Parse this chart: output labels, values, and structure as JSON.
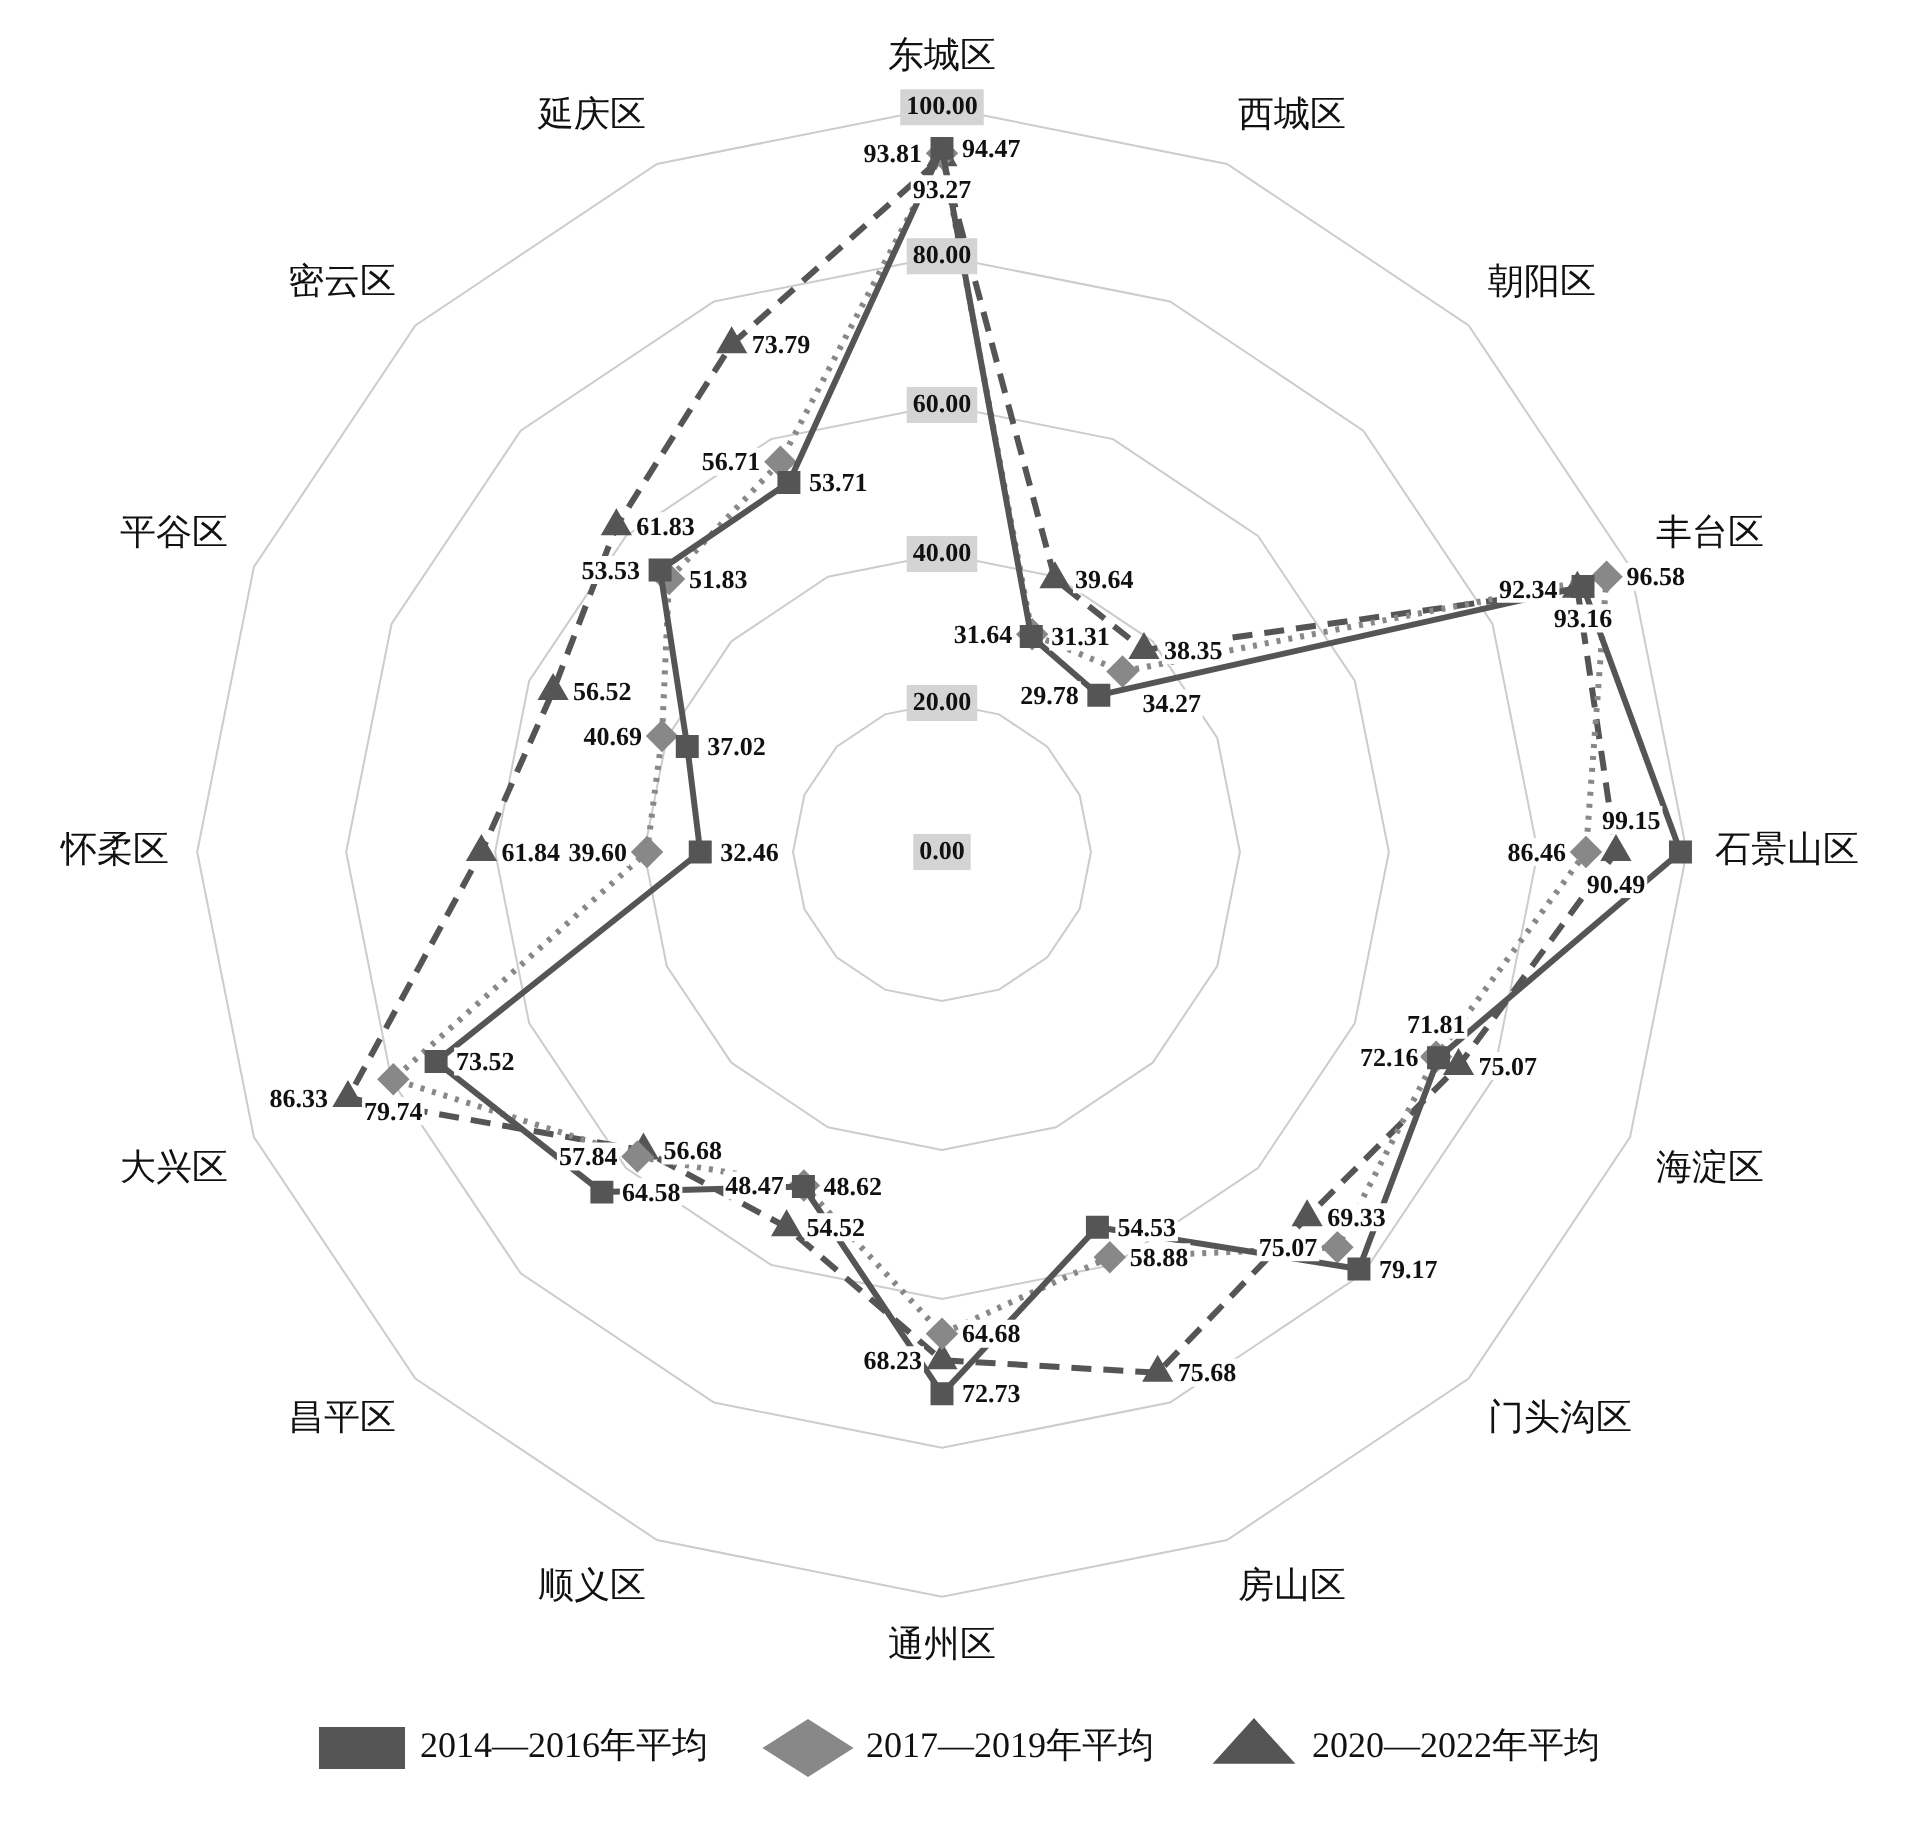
{
  "chart_data": {
    "type": "radar",
    "categories": [
      "东城区",
      "西城区",
      "朝阳区",
      "丰台区",
      "石景山区",
      "海淀区",
      "门头沟区",
      "房山区",
      "通州区",
      "顺义区",
      "昌平区",
      "大兴区",
      "怀柔区",
      "平谷区",
      "密云区",
      "延庆区"
    ],
    "ylim": [
      0,
      100
    ],
    "yticks": [
      {
        "value": 0,
        "label": "0.00"
      },
      {
        "value": 20,
        "label": "20.00"
      },
      {
        "value": 40,
        "label": "40.00"
      },
      {
        "value": 60,
        "label": "60.00"
      },
      {
        "value": 80,
        "label": "80.00"
      },
      {
        "value": 100,
        "label": "100.00"
      }
    ],
    "grid": true,
    "legend": "bottom",
    "data_labels": true,
    "series": [
      {
        "name": "2014—2016年平均",
        "color": "#555555",
        "marker": "square",
        "line_style": "solid",
        "values": [
          94.47,
          31.31,
          29.78,
          93.16,
          99.15,
          72.16,
          79.17,
          54.53,
          72.73,
          48.62,
          64.58,
          73.52,
          32.46,
          37.02,
          53.53,
          53.71
        ],
        "value_labels": [
          "94.47",
          "31.31",
          "29.78",
          "93.16",
          "99.15",
          "72.16",
          "79.17",
          "54.53",
          "72.73",
          "48.62",
          "64.58",
          "73.52",
          "32.46",
          "37.02",
          "53.53",
          "53.71"
        ]
      },
      {
        "name": "2017—2019年平均",
        "color": "#888888",
        "marker": "diamond",
        "line_style": "dotted",
        "values": [
          93.81,
          31.64,
          34.27,
          96.58,
          86.46,
          71.81,
          75.07,
          58.88,
          64.68,
          48.47,
          57.84,
          79.74,
          39.6,
          40.69,
          51.83,
          56.71
        ],
        "value_labels": [
          "93.81",
          "31.64",
          "34.27",
          "96.58",
          "86.46",
          "71.81",
          "75.07",
          "58.88",
          "64.68",
          "48.47",
          "57.84",
          "79.74",
          "39.60",
          "40.69",
          "51.83",
          "56.71"
        ]
      },
      {
        "name": "2020—2022年平均",
        "color": "#555555",
        "marker": "triangle",
        "line_style": "dashed",
        "values": [
          93.27,
          39.64,
          38.35,
          92.34,
          90.49,
          75.07,
          69.33,
          75.68,
          68.23,
          54.52,
          56.68,
          86.33,
          61.84,
          56.52,
          61.83,
          73.79
        ],
        "value_labels": [
          "93.27",
          "39.64",
          "38.35",
          "92.34",
          "90.49",
          "75.07",
          "69.33",
          "75.68",
          "68.23",
          "54.52",
          "56.68",
          "86.33",
          "61.84",
          "56.52",
          "61.83",
          "73.79"
        ]
      }
    ]
  }
}
